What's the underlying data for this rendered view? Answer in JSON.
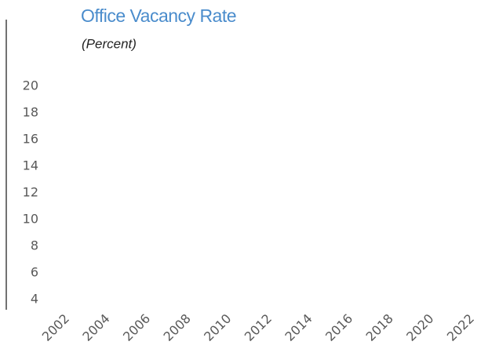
{
  "chart_data": {
    "type": "line",
    "title": "Office Vacancy Rate",
    "subtitle": "(Percent)",
    "series": [],
    "xlim": [
      2002,
      2022
    ],
    "xticks": [
      2002,
      2004,
      2006,
      2008,
      2010,
      2012,
      2014,
      2016,
      2018,
      2020,
      2022
    ],
    "ylim": [
      4,
      20
    ],
    "yticks": [
      4,
      6,
      8,
      10,
      12,
      14,
      16,
      18,
      20
    ],
    "grid": false
  }
}
